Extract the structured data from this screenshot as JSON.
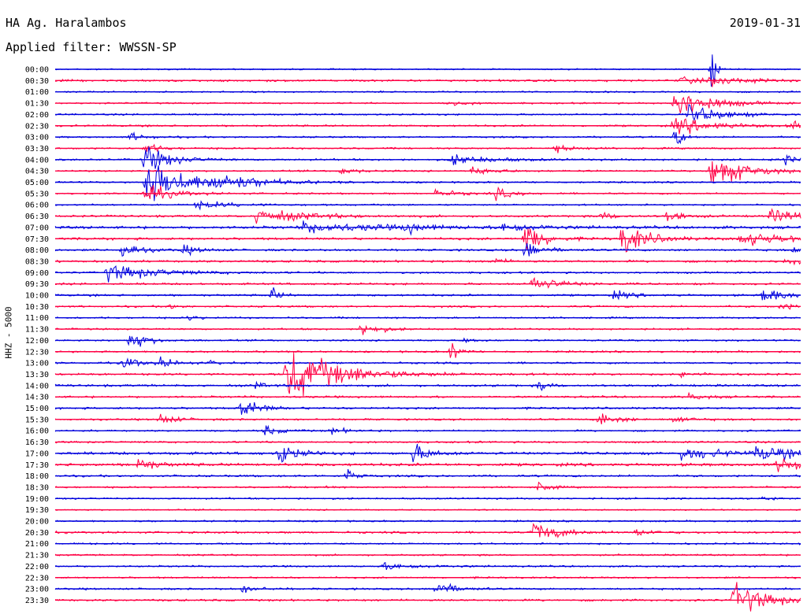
{
  "header": {
    "station": "HA Ag. Haralambos",
    "date": "2019-01-31",
    "filter": "Applied filter: WWSSN-SP"
  },
  "colors": {
    "even_trace": "#0000dd",
    "odd_trace": "#ff0044"
  },
  "chart_data": {
    "type": "line",
    "title": "HA Ag. Haralambos",
    "ylabel": "HHZ - 5000",
    "xlabel": "",
    "row_interval_minutes": 30,
    "grid": false,
    "tick_labels": [
      "00:00",
      "00:30",
      "01:00",
      "01:30",
      "02:00",
      "02:30",
      "03:00",
      "03:30",
      "04:00",
      "04:30",
      "05:00",
      "05:30",
      "06:00",
      "06:30",
      "07:00",
      "07:30",
      "08:00",
      "08:30",
      "09:00",
      "09:30",
      "10:00",
      "10:30",
      "11:00",
      "11:30",
      "12:00",
      "12:30",
      "13:00",
      "13:30",
      "14:00",
      "14:30",
      "15:00",
      "15:30",
      "16:00",
      "16:30",
      "17:00",
      "17:30",
      "18:00",
      "18:30",
      "19:00",
      "19:30",
      "20:00",
      "20:30",
      "21:00",
      "21:30",
      "22:00",
      "22:30",
      "23:00",
      "23:30"
    ],
    "noise": [
      0.8,
      1.2,
      0.9,
      0.9,
      1.0,
      1.1,
      1.0,
      1.0,
      1.1,
      1.0,
      1.0,
      1.0,
      1.0,
      1.2,
      1.6,
      1.4,
      1.2,
      1.3,
      1.1,
      1.2,
      1.2,
      1.1,
      1.0,
      1.0,
      1.0,
      1.1,
      1.1,
      1.2,
      1.3,
      1.2,
      1.2,
      1.1,
      1.0,
      1.1,
      1.6,
      1.7,
      1.2,
      1.0,
      1.0,
      0.8,
      1.0,
      1.2,
      1.0,
      1.0,
      1.0,
      1.0,
      1.1,
      1.2
    ],
    "events": [
      {
        "row": 0,
        "x": 0.88,
        "amp": 34,
        "dur": 0.005
      },
      {
        "row": 1,
        "x": 0.84,
        "amp": 5,
        "dur": 0.02
      },
      {
        "row": 1,
        "x": 0.88,
        "amp": 7,
        "dur": 0.02
      },
      {
        "row": 1,
        "x": 0.93,
        "amp": 3,
        "dur": 0.02
      },
      {
        "row": 3,
        "x": 0.83,
        "amp": 22,
        "dur": 0.04
      },
      {
        "row": 3,
        "x": 0.52,
        "amp": 3,
        "dur": 0.03
      },
      {
        "row": 4,
        "x": 0.85,
        "amp": 12,
        "dur": 0.04
      },
      {
        "row": 5,
        "x": 0.83,
        "amp": 10,
        "dur": 0.05
      },
      {
        "row": 5,
        "x": 0.99,
        "amp": 5,
        "dur": 0.02
      },
      {
        "row": 6,
        "x": 0.1,
        "amp": 5,
        "dur": 0.02
      },
      {
        "row": 6,
        "x": 0.83,
        "amp": 14,
        "dur": 0.01
      },
      {
        "row": 7,
        "x": 0.67,
        "amp": 6,
        "dur": 0.02
      },
      {
        "row": 7,
        "x": 0.12,
        "amp": 6,
        "dur": 0.02
      },
      {
        "row": 8,
        "x": 0.12,
        "amp": 18,
        "dur": 0.03
      },
      {
        "row": 8,
        "x": 0.53,
        "amp": 6,
        "dur": 0.05
      },
      {
        "row": 8,
        "x": 0.98,
        "amp": 5,
        "dur": 0.03
      },
      {
        "row": 9,
        "x": 0.88,
        "amp": 22,
        "dur": 0.04
      },
      {
        "row": 9,
        "x": 0.38,
        "amp": 5,
        "dur": 0.02
      },
      {
        "row": 9,
        "x": 0.56,
        "amp": 5,
        "dur": 0.03
      },
      {
        "row": 10,
        "x": 0.12,
        "amp": 30,
        "dur": 0.05
      },
      {
        "row": 10,
        "x": 0.21,
        "amp": 10,
        "dur": 0.05
      },
      {
        "row": 11,
        "x": 0.12,
        "amp": 12,
        "dur": 0.03
      },
      {
        "row": 11,
        "x": 0.59,
        "amp": 7,
        "dur": 0.02
      },
      {
        "row": 11,
        "x": 0.51,
        "amp": 4,
        "dur": 0.03
      },
      {
        "row": 12,
        "x": 0.19,
        "amp": 5,
        "dur": 0.04
      },
      {
        "row": 13,
        "x": 0.27,
        "amp": 9,
        "dur": 0.06
      },
      {
        "row": 13,
        "x": 0.73,
        "amp": 5,
        "dur": 0.02
      },
      {
        "row": 13,
        "x": 0.82,
        "amp": 7,
        "dur": 0.02
      },
      {
        "row": 13,
        "x": 0.96,
        "amp": 8,
        "dur": 0.05
      },
      {
        "row": 14,
        "x": 0.33,
        "amp": 6,
        "dur": 0.1
      },
      {
        "row": 14,
        "x": 0.47,
        "amp": 6,
        "dur": 0.02
      },
      {
        "row": 14,
        "x": 0.6,
        "amp": 6,
        "dur": 0.04
      },
      {
        "row": 15,
        "x": 0.63,
        "amp": 24,
        "dur": 0.02
      },
      {
        "row": 15,
        "x": 0.76,
        "amp": 20,
        "dur": 0.03
      },
      {
        "row": 15,
        "x": 0.92,
        "amp": 8,
        "dur": 0.08
      },
      {
        "row": 16,
        "x": 0.09,
        "amp": 10,
        "dur": 0.02
      },
      {
        "row": 16,
        "x": 0.17,
        "amp": 6,
        "dur": 0.02
      },
      {
        "row": 16,
        "x": 0.63,
        "amp": 12,
        "dur": 0.02
      },
      {
        "row": 16,
        "x": 0.99,
        "amp": 4,
        "dur": 0.02
      },
      {
        "row": 17,
        "x": 0.58,
        "amp": 4,
        "dur": 0.02
      },
      {
        "row": 17,
        "x": 0.98,
        "amp": 4,
        "dur": 0.02
      },
      {
        "row": 18,
        "x": 0.07,
        "amp": 10,
        "dur": 0.06
      },
      {
        "row": 19,
        "x": 0.64,
        "amp": 10,
        "dur": 0.03
      },
      {
        "row": 20,
        "x": 0.29,
        "amp": 10,
        "dur": 0.01
      },
      {
        "row": 20,
        "x": 0.75,
        "amp": 5,
        "dur": 0.02
      },
      {
        "row": 20,
        "x": 0.95,
        "amp": 9,
        "dur": 0.03
      },
      {
        "row": 21,
        "x": 0.15,
        "amp": 4,
        "dur": 0.01
      },
      {
        "row": 21,
        "x": 0.97,
        "amp": 5,
        "dur": 0.02
      },
      {
        "row": 22,
        "x": 0.18,
        "amp": 4,
        "dur": 0.01
      },
      {
        "row": 23,
        "x": 0.41,
        "amp": 10,
        "dur": 0.02
      },
      {
        "row": 24,
        "x": 0.1,
        "amp": 12,
        "dur": 0.02
      },
      {
        "row": 24,
        "x": 0.55,
        "amp": 4,
        "dur": 0.01
      },
      {
        "row": 25,
        "x": 0.53,
        "amp": 14,
        "dur": 0.01
      },
      {
        "row": 26,
        "x": 0.09,
        "amp": 8,
        "dur": 0.02
      },
      {
        "row": 26,
        "x": 0.14,
        "amp": 6,
        "dur": 0.02
      },
      {
        "row": 26,
        "x": 0.21,
        "amp": 4,
        "dur": 0.01
      },
      {
        "row": 27,
        "x": 0.31,
        "amp": 36,
        "dur": 0.06
      },
      {
        "row": 27,
        "x": 0.84,
        "amp": 4,
        "dur": 0.02
      },
      {
        "row": 28,
        "x": 0.27,
        "amp": 5,
        "dur": 0.01
      },
      {
        "row": 28,
        "x": 0.65,
        "amp": 8,
        "dur": 0.01
      },
      {
        "row": 29,
        "x": 0.85,
        "amp": 4,
        "dur": 0.02
      },
      {
        "row": 30,
        "x": 0.25,
        "amp": 14,
        "dur": 0.02
      },
      {
        "row": 31,
        "x": 0.14,
        "amp": 7,
        "dur": 0.02
      },
      {
        "row": 31,
        "x": 0.73,
        "amp": 10,
        "dur": 0.02
      },
      {
        "row": 31,
        "x": 0.83,
        "amp": 5,
        "dur": 0.02
      },
      {
        "row": 32,
        "x": 0.28,
        "amp": 6,
        "dur": 0.02
      },
      {
        "row": 32,
        "x": 0.37,
        "amp": 4,
        "dur": 0.02
      },
      {
        "row": 34,
        "x": 0.3,
        "amp": 14,
        "dur": 0.02
      },
      {
        "row": 34,
        "x": 0.48,
        "amp": 12,
        "dur": 0.02
      },
      {
        "row": 34,
        "x": 0.84,
        "amp": 8,
        "dur": 0.05
      },
      {
        "row": 34,
        "x": 0.94,
        "amp": 8,
        "dur": 0.05
      },
      {
        "row": 35,
        "x": 0.11,
        "amp": 9,
        "dur": 0.02
      },
      {
        "row": 35,
        "x": 0.97,
        "amp": 10,
        "dur": 0.03
      },
      {
        "row": 36,
        "x": 0.39,
        "amp": 10,
        "dur": 0.01
      },
      {
        "row": 37,
        "x": 0.35,
        "amp": 4,
        "dur": 0.01
      },
      {
        "row": 37,
        "x": 0.65,
        "amp": 10,
        "dur": 0.01
      },
      {
        "row": 38,
        "x": 0.95,
        "amp": 4,
        "dur": 0.01
      },
      {
        "row": 41,
        "x": 0.64,
        "amp": 14,
        "dur": 0.03
      },
      {
        "row": 41,
        "x": 0.78,
        "amp": 5,
        "dur": 0.02
      },
      {
        "row": 44,
        "x": 0.44,
        "amp": 4,
        "dur": 0.05
      },
      {
        "row": 46,
        "x": 0.25,
        "amp": 5,
        "dur": 0.02
      },
      {
        "row": 46,
        "x": 0.51,
        "amp": 12,
        "dur": 0.02
      },
      {
        "row": 47,
        "x": 0.91,
        "amp": 20,
        "dur": 0.04
      }
    ]
  }
}
